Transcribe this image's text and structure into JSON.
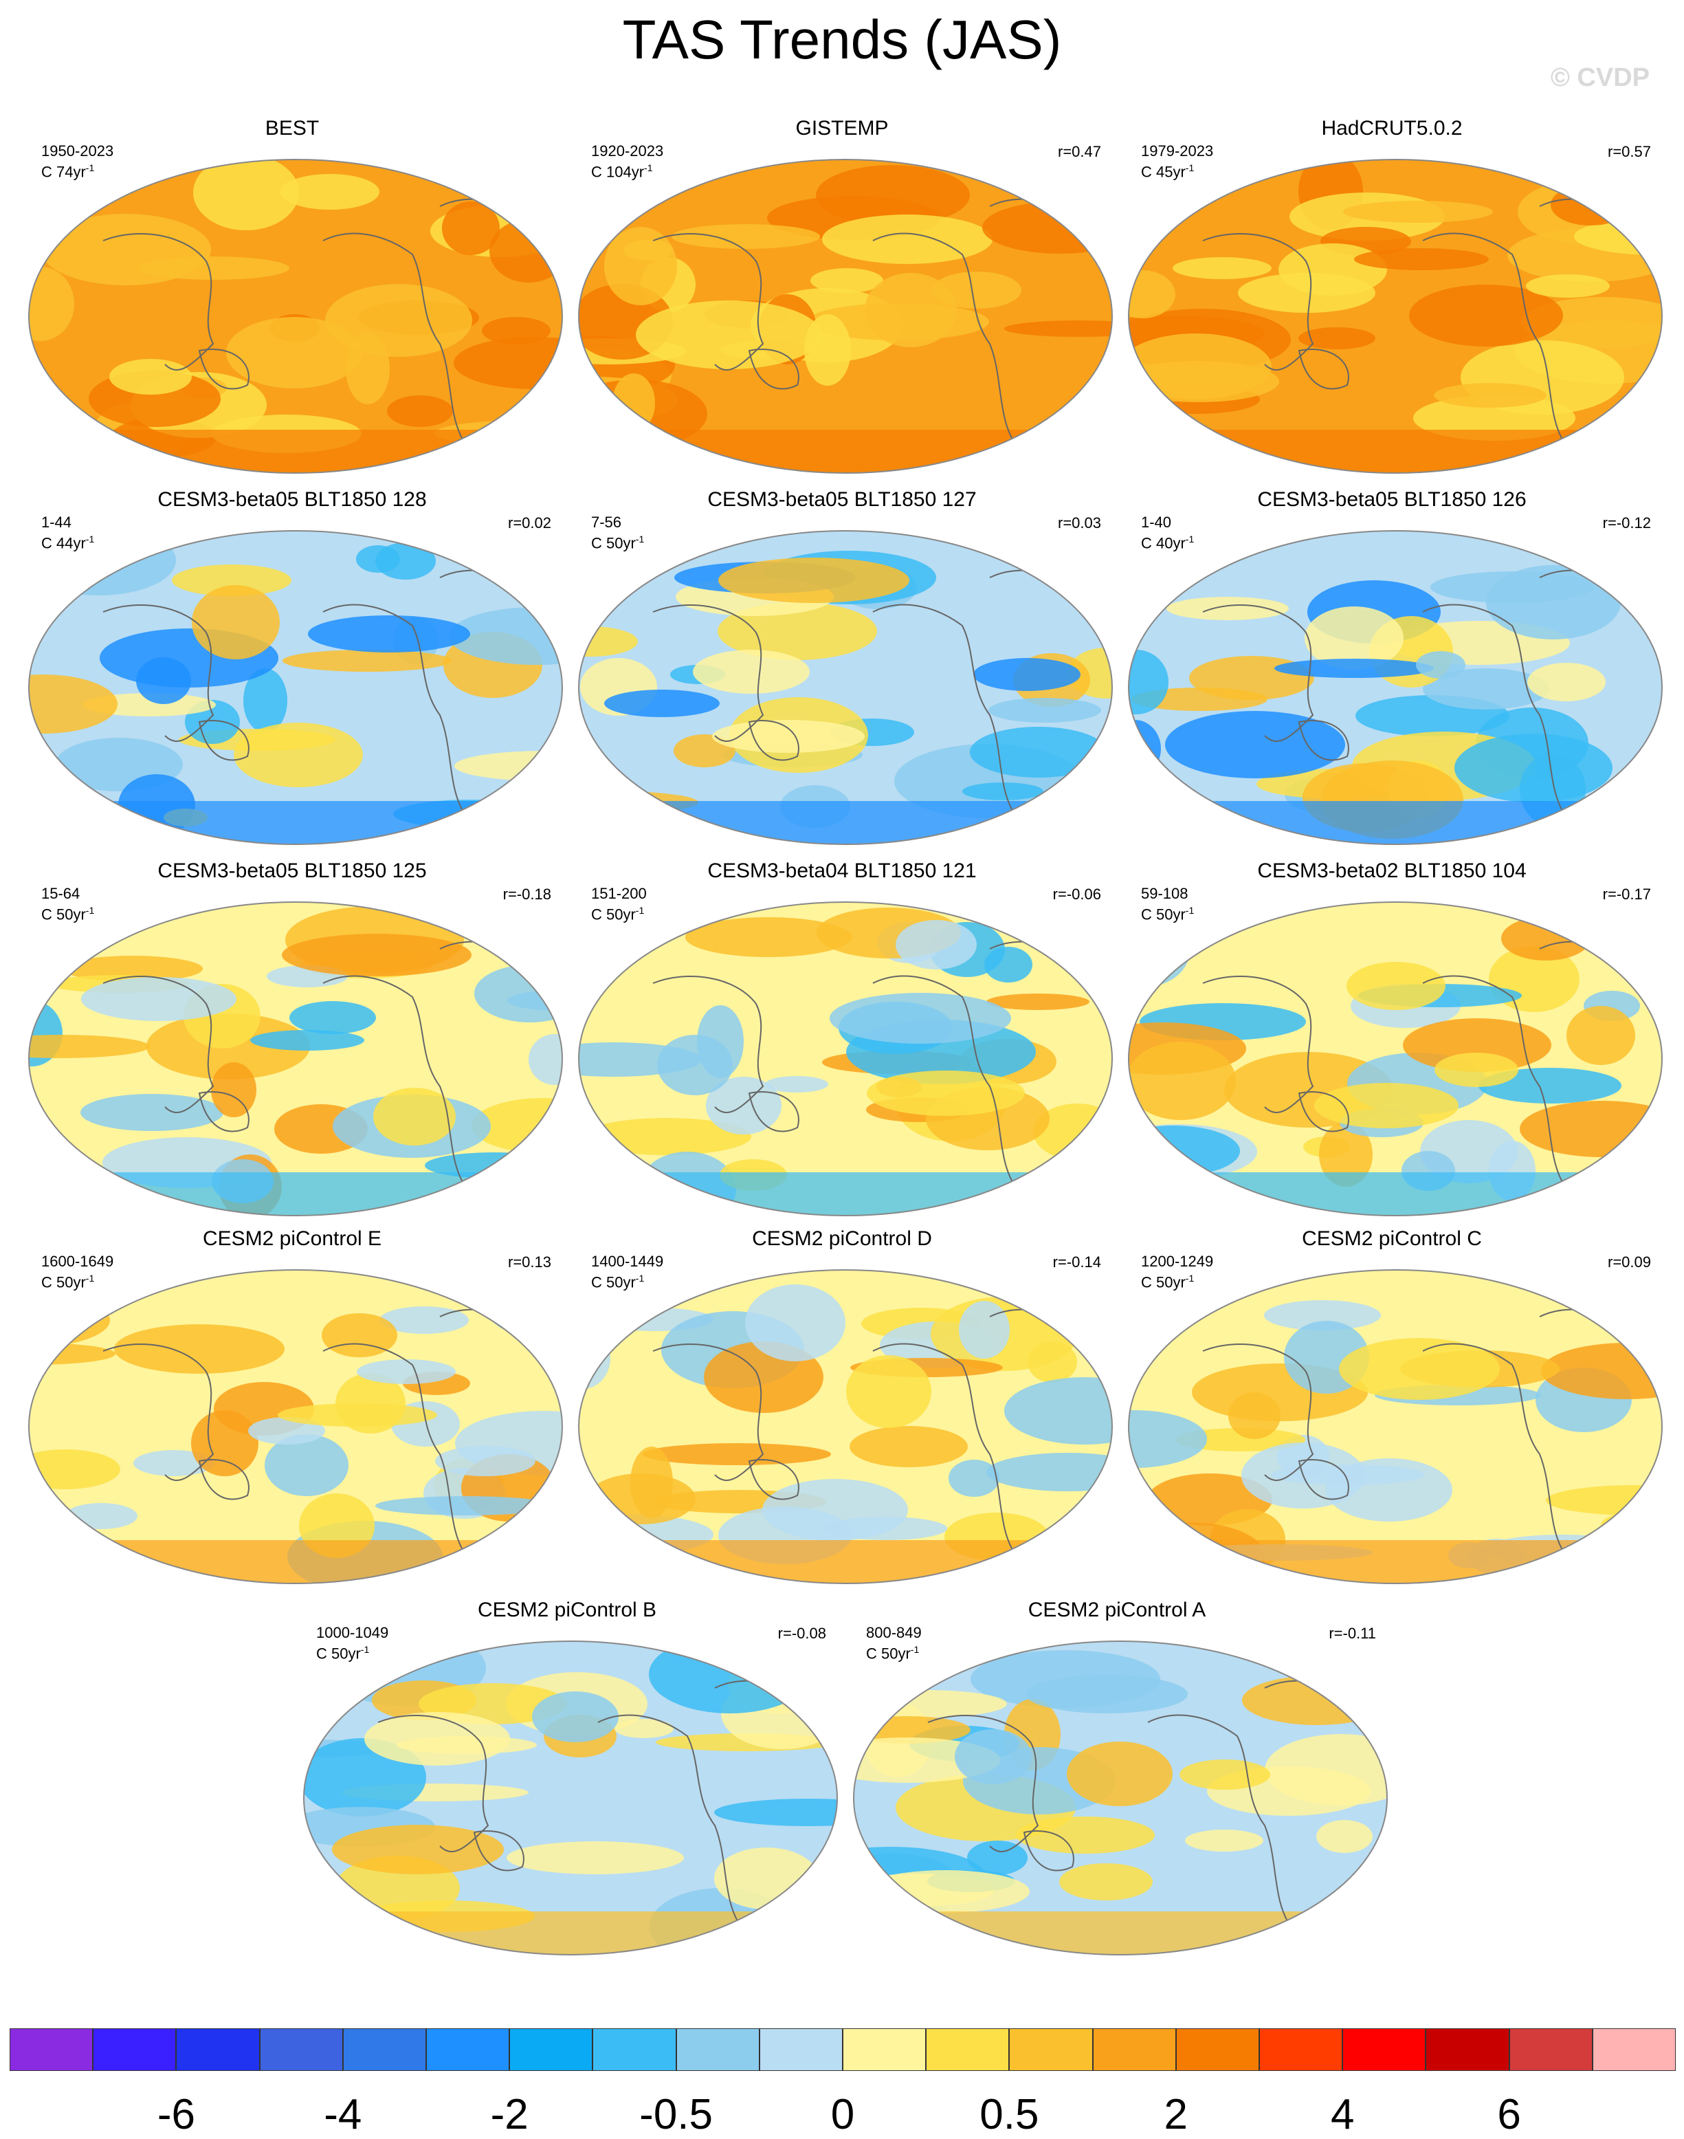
{
  "title": "TAS Trends (JAS)",
  "watermark": "© CVDP",
  "panels": [
    {
      "title": "BEST",
      "period": "1950-2023",
      "len": "74",
      "r": "",
      "theme": "obs"
    },
    {
      "title": "GISTEMP",
      "period": "1920-2023",
      "len": "104",
      "r": "r=0.47",
      "theme": "obs"
    },
    {
      "title": "HadCRUT5.0.2",
      "period": "1979-2023",
      "len": "45",
      "r": "r=0.57",
      "theme": "obs"
    },
    {
      "title": "CESM3-beta05 BLT1850 128",
      "period": "1-44",
      "len": "44",
      "r": "r=0.02",
      "theme": "cool"
    },
    {
      "title": "CESM3-beta05 BLT1850 127",
      "period": "7-56",
      "len": "50",
      "r": "r=0.03",
      "theme": "cool"
    },
    {
      "title": "CESM3-beta05 BLT1850 126",
      "period": "1-40",
      "len": "40",
      "r": "r=-0.12",
      "theme": "cool"
    },
    {
      "title": "CESM3-beta05 BLT1850 125",
      "period": "15-64",
      "len": "50",
      "r": "r=-0.18",
      "theme": "mixed"
    },
    {
      "title": "CESM3-beta04 BLT1850 121",
      "period": "151-200",
      "len": "50",
      "r": "r=-0.06",
      "theme": "mixed"
    },
    {
      "title": "CESM3-beta02 BLT1850 104",
      "period": "59-108",
      "len": "50",
      "r": "r=-0.17",
      "theme": "mixed"
    },
    {
      "title": "CESM2 piControl E",
      "period": "1600-1649",
      "len": "50",
      "r": "r=0.13",
      "theme": "warmish"
    },
    {
      "title": "CESM2 piControl D",
      "period": "1400-1449",
      "len": "50",
      "r": "r=-0.14",
      "theme": "warmish"
    },
    {
      "title": "CESM2 piControl C",
      "period": "1200-1249",
      "len": "50",
      "r": "r=0.09",
      "theme": "warmish"
    },
    {
      "title": "CESM2 piControl B",
      "period": "1000-1049",
      "len": "50",
      "r": "r=-0.08",
      "theme": "coolish"
    },
    {
      "title": "CESM2 piControl A",
      "period": "800-849",
      "len": "50",
      "r": "r=-0.11",
      "theme": "coolish"
    }
  ],
  "units": {
    "prefix": "C ",
    "suffix": "yr",
    "exponent": "-1"
  },
  "colorbar": {
    "colors": [
      "#8a2be2",
      "#3a1fff",
      "#1f33f0",
      "#3d63e0",
      "#2f7ae8",
      "#1e90ff",
      "#0aaaf5",
      "#3bbcf5",
      "#8ccdee",
      "#b9ddf3",
      "#fff59d",
      "#fde047",
      "#fbc02d",
      "#f9a11b",
      "#f57c00",
      "#ff3d00",
      "#ff0000",
      "#c80000",
      "#d43c3c",
      "#ffb3b3"
    ],
    "labels": [
      "-6",
      "-4",
      "-2",
      "-0.5",
      "0",
      "0.5",
      "2",
      "4",
      "6"
    ]
  }
}
